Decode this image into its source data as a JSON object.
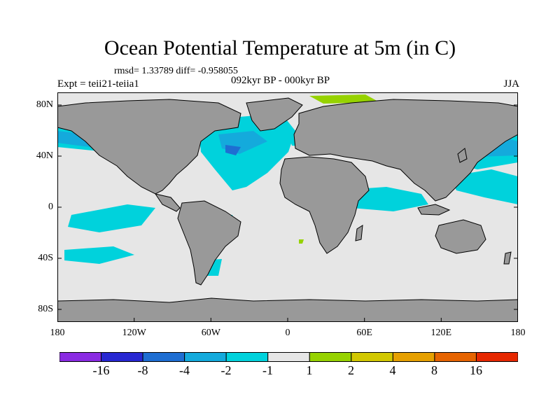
{
  "title": "Ocean Potential Temperature at 5m (in C)",
  "stats_line": "rmsd= 1.33789 diff= -0.958055",
  "experiment": "Expt = teii21-teiia1",
  "period": "092kyr BP - 000kyr BP",
  "season": "JJA",
  "map": {
    "projection": "cylindrical equidistant",
    "land_color": "#999999",
    "ocean_background_color": "#e6e6e6",
    "lat_ticks": [
      "80N",
      "40N",
      "0",
      "40S",
      "80S"
    ],
    "lon_ticks": [
      "180",
      "120W",
      "60W",
      "0",
      "60E",
      "120E",
      "180"
    ]
  },
  "colorbar": {
    "labels": [
      "-16",
      "-8",
      "-4",
      "-2",
      "-1",
      "1",
      "2",
      "4",
      "8",
      "16"
    ],
    "colors": [
      "#8a2be2",
      "#2828d2",
      "#1e6ed2",
      "#14aadc",
      "#00d2dc",
      "#e6e6e6",
      "#96d200",
      "#d2c800",
      "#e6a000",
      "#e66400",
      "#e62800"
    ]
  }
}
